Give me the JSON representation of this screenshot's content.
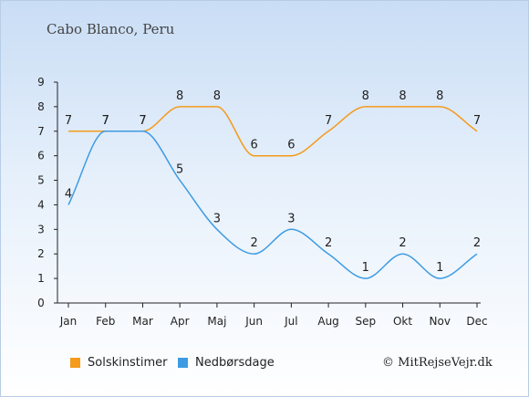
{
  "chart_data": {
    "type": "line",
    "title": "Cabo Blanco, Peru",
    "categories": [
      "Jan",
      "Feb",
      "Mar",
      "Apr",
      "Maj",
      "Jun",
      "Jul",
      "Aug",
      "Sep",
      "Okt",
      "Nov",
      "Dec"
    ],
    "series": [
      {
        "name": "Solskinstimer",
        "color": "#f59a1b",
        "values": [
          7,
          7,
          7,
          8,
          8,
          6,
          6,
          7,
          8,
          8,
          8,
          7
        ]
      },
      {
        "name": "Nedbørsdage",
        "color": "#3d9be3",
        "values": [
          4,
          7,
          7,
          5,
          3,
          2,
          3,
          2,
          1,
          2,
          1,
          2
        ]
      }
    ],
    "ylim": [
      0,
      9
    ],
    "yticks": [
      0,
      1,
      2,
      3,
      4,
      5,
      6,
      7,
      8,
      9
    ],
    "grid": false,
    "legend_position": "bottom-left"
  },
  "credit": "© MitRejseVejr.dk"
}
